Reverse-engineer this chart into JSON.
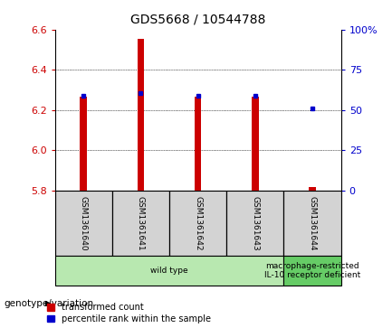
{
  "title": "GDS5668 / 10544788",
  "samples": [
    "GSM1361640",
    "GSM1361641",
    "GSM1361642",
    "GSM1361643",
    "GSM1361644"
  ],
  "red_values": [
    6.265,
    6.555,
    6.265,
    6.265,
    5.815
  ],
  "blue_values": [
    6.272,
    6.284,
    6.268,
    6.268,
    6.207
  ],
  "y_min": 5.8,
  "y_max": 6.6,
  "y_ticks": [
    5.8,
    6.0,
    6.2,
    6.4,
    6.6
  ],
  "right_y_ticks": [
    0,
    25,
    50,
    75,
    100
  ],
  "right_y_labels": [
    "0",
    "25",
    "50",
    "75",
    "100%"
  ],
  "groups": [
    {
      "label": "wild type",
      "samples": [
        0,
        1,
        2,
        3
      ],
      "color": "#b8e8b0"
    },
    {
      "label": "macrophage-restricted\nIL-10 receptor deficient",
      "samples": [
        4
      ],
      "color": "#66cc66"
    }
  ],
  "bar_color": "#cc0000",
  "blue_color": "#0000cc",
  "bar_bottom": 5.8,
  "genotype_label": "genotype/variation",
  "legend_red": "transformed count",
  "legend_blue": "percentile rank within the sample",
  "bg_color": "#ffffff",
  "plot_bg": "#ffffff",
  "grid_color": "#000000",
  "tick_label_color_left": "#cc0000",
  "tick_label_color_right": "#0000cc",
  "sample_box_color": "#d3d3d3",
  "bar_width": 0.12
}
